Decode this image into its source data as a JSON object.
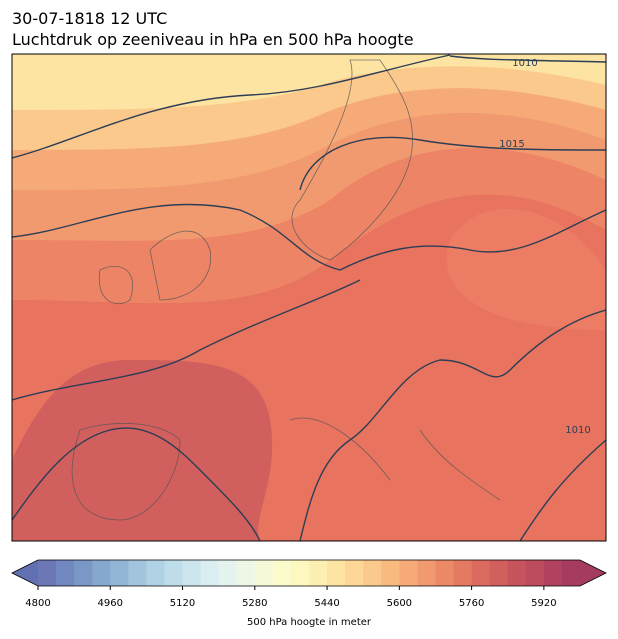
{
  "title": "30-07-1818 12 UTC",
  "subtitle": "Luchtdruk op zeeniveau in hPa en 500 hPa hoogte",
  "contour_labels": [
    "1010",
    "1015",
    "1010"
  ],
  "colorbar": {
    "label": "500 hPa hoogte in meter",
    "range": [
      4800,
      6000
    ],
    "ticks": [
      4800,
      4960,
      5120,
      5280,
      5440,
      5600,
      5760,
      5920
    ],
    "under_color": "#6170b0",
    "over_color": "#a53c5f",
    "colors": [
      "#6c77b6",
      "#7188c0",
      "#7a97c7",
      "#86a8cf",
      "#93b6d6",
      "#a2c4dd",
      "#b1d1e4",
      "#bfdcea",
      "#cde5ee",
      "#daeef1",
      "#e5f3ef",
      "#eef7e6",
      "#f5f9d8",
      "#fbfbcc",
      "#fdf7c0",
      "#fdefb2",
      "#fde4a3",
      "#fcd797",
      "#fbc98b",
      "#f9ba80",
      "#f6aa77",
      "#f29a6f",
      "#ec8a67",
      "#e57a62",
      "#dc6b5f",
      "#d15f5d",
      "#c7545d",
      "#bc4b5e",
      "#b0425f",
      "#a53c5f"
    ]
  }
}
